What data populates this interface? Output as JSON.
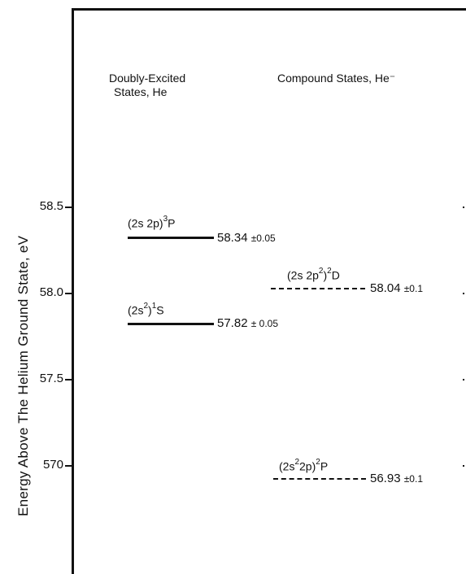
{
  "axis": {
    "label": "Energy Above The Helium Ground State, eV",
    "ticks": [
      "58.5",
      "58.0",
      "57.5",
      "570"
    ]
  },
  "columns": {
    "left_line1": "Doubly-Excited",
    "left_line2": "States, He",
    "right": "Compound States, He⁻"
  },
  "levels": {
    "p3": {
      "term_base": "(2s 2p)",
      "term_sup": "3",
      "term_letter": "P",
      "value": "58.34",
      "error": "±0.05"
    },
    "s1": {
      "term_base": "(2s",
      "term_sup1": "2",
      "term_mid": ")",
      "term_sup": "1",
      "term_letter": "S",
      "value": "57.82",
      "error": "± 0.05"
    },
    "d2": {
      "term_base": "(2s 2p",
      "term_sup1": "2",
      "term_mid": ")",
      "term_sup": "2",
      "term_letter": "D",
      "value": "58.04",
      "error": "±0.1"
    },
    "p2": {
      "term_base": "(2s",
      "term_sup1": "2",
      "term_mid": "2p)",
      "term_sup": "2",
      "term_letter": "P",
      "value": "56.93",
      "error": "±0.1"
    }
  }
}
